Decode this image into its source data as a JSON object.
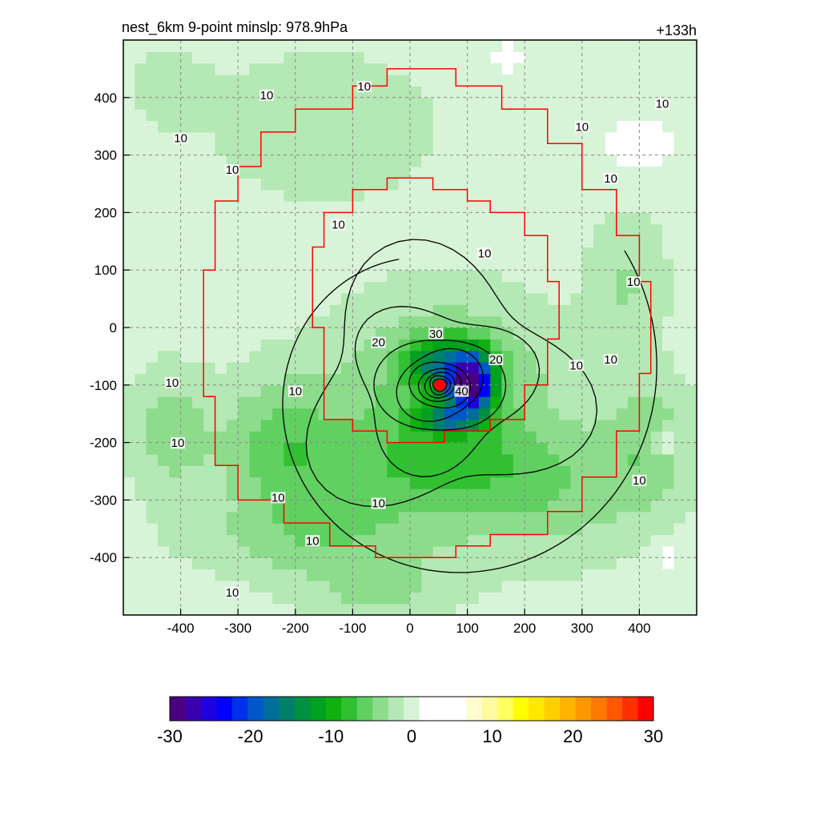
{
  "chart_data": {
    "type": "heatmap",
    "title": "nest_6km  9-point minslp: 978.9hPa",
    "time_label": "+133h",
    "xlabel": "",
    "ylabel": "",
    "xlim": [
      -500,
      500
    ],
    "ylim": [
      -500,
      500
    ],
    "xticks": [
      -400,
      -300,
      -200,
      -100,
      0,
      100,
      200,
      300,
      400
    ],
    "yticks": [
      -400,
      -300,
      -200,
      -100,
      0,
      100,
      200,
      300,
      400
    ],
    "grid": true,
    "colorbar": {
      "range": [
        -30,
        30
      ],
      "ticks": [
        -30,
        -20,
        -10,
        0,
        10,
        20,
        30
      ],
      "colors": [
        "#4b0082",
        "#3a00b0",
        "#1e00e0",
        "#0000ff",
        "#0030e8",
        "#0058c8",
        "#006e9a",
        "#00806a",
        "#009040",
        "#00a020",
        "#10b010",
        "#30c030",
        "#60d060",
        "#8cdc8c",
        "#b4e8b4",
        "#d8f4d8",
        "#ffffff",
        "#ffffff",
        "#ffffff",
        "#fffcd0",
        "#fffaa0",
        "#ffff60",
        "#ffff00",
        "#ffe800",
        "#ffd000",
        "#ffb400",
        "#ff9800",
        "#ff7800",
        "#ff5800",
        "#ff3000",
        "#ff0000"
      ]
    },
    "cell_km": 20,
    "field_blobs": [
      {
        "x": 60,
        "y": -100,
        "sx": 190,
        "sy": 150,
        "a": -6
      },
      {
        "x": 20,
        "y": -250,
        "sx": 240,
        "sy": 90,
        "a": -5
      },
      {
        "x": -230,
        "y": -200,
        "sx": 100,
        "sy": 120,
        "a": -5
      },
      {
        "x": -420,
        "y": -180,
        "sx": 70,
        "sy": 110,
        "a": -4
      },
      {
        "x": -150,
        "y": -370,
        "sx": 220,
        "sy": 70,
        "a": -4
      },
      {
        "x": 260,
        "y": -300,
        "sx": 160,
        "sy": 120,
        "a": -3
      },
      {
        "x": 420,
        "y": -200,
        "sx": 80,
        "sy": 110,
        "a": -4
      },
      {
        "x": -50,
        "y": -460,
        "sx": 140,
        "sy": 50,
        "a": -3
      },
      {
        "x": 100,
        "y": -90,
        "sx": 50,
        "sy": 60,
        "a": -14
      },
      {
        "x": 40,
        "y": -60,
        "sx": 50,
        "sy": 40,
        "a": -8
      },
      {
        "x": 110,
        "y": -100,
        "sx": 30,
        "sy": 45,
        "a": -14
      },
      {
        "x": 60,
        "y": -160,
        "sx": 45,
        "sy": 20,
        "a": -10
      },
      {
        "x": 440,
        "y": -200,
        "sx": 25,
        "sy": 25,
        "a": 5
      },
      {
        "x": 400,
        "y": 320,
        "sx": 60,
        "sy": 40,
        "a": 3
      },
      {
        "x": 450,
        "y": -400,
        "sx": 20,
        "sy": 25,
        "a": 4
      },
      {
        "x": 170,
        "y": 470,
        "sx": 20,
        "sy": 20,
        "a": 5
      },
      {
        "x": -150,
        "y": 350,
        "sx": 200,
        "sy": 130,
        "a": -2.5
      },
      {
        "x": 380,
        "y": 80,
        "sx": 70,
        "sy": 120,
        "a": -3
      },
      {
        "x": -420,
        "y": 420,
        "sx": 60,
        "sy": 60,
        "a": -2.5
      }
    ],
    "center": {
      "x": 52,
      "y": -100
    },
    "eye": {
      "x": 52,
      "y": -100,
      "r": 10
    },
    "inner_box": [
      [
        -150,
        -160
      ],
      [
        -150,
        0
      ],
      [
        -170,
        0
      ],
      [
        -170,
        140
      ],
      [
        -150,
        140
      ],
      [
        -150,
        200
      ],
      [
        -100,
        200
      ],
      [
        -100,
        240
      ],
      [
        -40,
        240
      ],
      [
        -40,
        260
      ],
      [
        40,
        260
      ],
      [
        40,
        240
      ],
      [
        100,
        240
      ],
      [
        100,
        220
      ],
      [
        140,
        220
      ],
      [
        140,
        200
      ],
      [
        200,
        200
      ],
      [
        200,
        160
      ],
      [
        240,
        160
      ],
      [
        240,
        80
      ],
      [
        260,
        80
      ],
      [
        260,
        -20
      ],
      [
        240,
        -20
      ],
      [
        240,
        -100
      ],
      [
        200,
        -100
      ],
      [
        200,
        -160
      ],
      [
        140,
        -160
      ],
      [
        140,
        -180
      ],
      [
        60,
        -180
      ],
      [
        60,
        -200
      ],
      [
        -40,
        -200
      ],
      [
        -40,
        -180
      ],
      [
        -100,
        -180
      ],
      [
        -100,
        -160
      ],
      [
        -150,
        -160
      ]
    ],
    "outer_box": [
      [
        -360,
        -120
      ],
      [
        -360,
        100
      ],
      [
        -340,
        100
      ],
      [
        -340,
        220
      ],
      [
        -300,
        220
      ],
      [
        -300,
        280
      ],
      [
        -260,
        280
      ],
      [
        -260,
        340
      ],
      [
        -200,
        340
      ],
      [
        -200,
        380
      ],
      [
        -100,
        380
      ],
      [
        -100,
        420
      ],
      [
        -40,
        420
      ],
      [
        -40,
        450
      ],
      [
        80,
        450
      ],
      [
        80,
        420
      ],
      [
        160,
        420
      ],
      [
        160,
        380
      ],
      [
        240,
        380
      ],
      [
        240,
        320
      ],
      [
        300,
        320
      ],
      [
        300,
        240
      ],
      [
        360,
        240
      ],
      [
        360,
        160
      ],
      [
        400,
        160
      ],
      [
        400,
        80
      ],
      [
        420,
        80
      ],
      [
        420,
        -80
      ],
      [
        400,
        -80
      ],
      [
        400,
        -180
      ],
      [
        360,
        -180
      ],
      [
        360,
        -260
      ],
      [
        300,
        -260
      ],
      [
        300,
        -320
      ],
      [
        240,
        -320
      ],
      [
        240,
        -360
      ],
      [
        140,
        -360
      ],
      [
        140,
        -380
      ],
      [
        80,
        -380
      ],
      [
        80,
        -400
      ],
      [
        -60,
        -400
      ],
      [
        -60,
        -380
      ],
      [
        -140,
        -380
      ],
      [
        -140,
        -340
      ],
      [
        -220,
        -340
      ],
      [
        -220,
        -300
      ],
      [
        -300,
        -300
      ],
      [
        -300,
        -240
      ],
      [
        -340,
        -240
      ],
      [
        -340,
        -120
      ],
      [
        -360,
        -120
      ]
    ],
    "contour_labels": [
      {
        "text": "10",
        "x": -250,
        "y": 400
      },
      {
        "text": "10",
        "x": -400,
        "y": 325
      },
      {
        "text": "10",
        "x": -310,
        "y": 270
      },
      {
        "text": "10",
        "x": -80,
        "y": 415
      },
      {
        "text": "10",
        "x": -125,
        "y": 175
      },
      {
        "text": "10",
        "x": 130,
        "y": 125
      },
      {
        "text": "10",
        "x": 300,
        "y": 345
      },
      {
        "text": "10",
        "x": 350,
        "y": 255
      },
      {
        "text": "10",
        "x": 440,
        "y": 385
      },
      {
        "text": "10",
        "x": 390,
        "y": 75
      },
      {
        "text": "10",
        "x": 290,
        "y": -70
      },
      {
        "text": "10",
        "x": 350,
        "y": -60
      },
      {
        "text": "10",
        "x": 400,
        "y": -270
      },
      {
        "text": "10",
        "x": -200,
        "y": -115
      },
      {
        "text": "10",
        "x": -415,
        "y": -100
      },
      {
        "text": "10",
        "x": -405,
        "y": -205
      },
      {
        "text": "10",
        "x": -230,
        "y": -300
      },
      {
        "text": "10",
        "x": -170,
        "y": -375
      },
      {
        "text": "10",
        "x": -55,
        "y": -310
      },
      {
        "text": "10",
        "x": -310,
        "y": -465
      },
      {
        "text": "20",
        "x": -55,
        "y": -30
      },
      {
        "text": "20",
        "x": 150,
        "y": -60
      },
      {
        "text": "30",
        "x": 45,
        "y": -15
      },
      {
        "text": "40",
        "x": 90,
        "y": -115
      }
    ]
  }
}
